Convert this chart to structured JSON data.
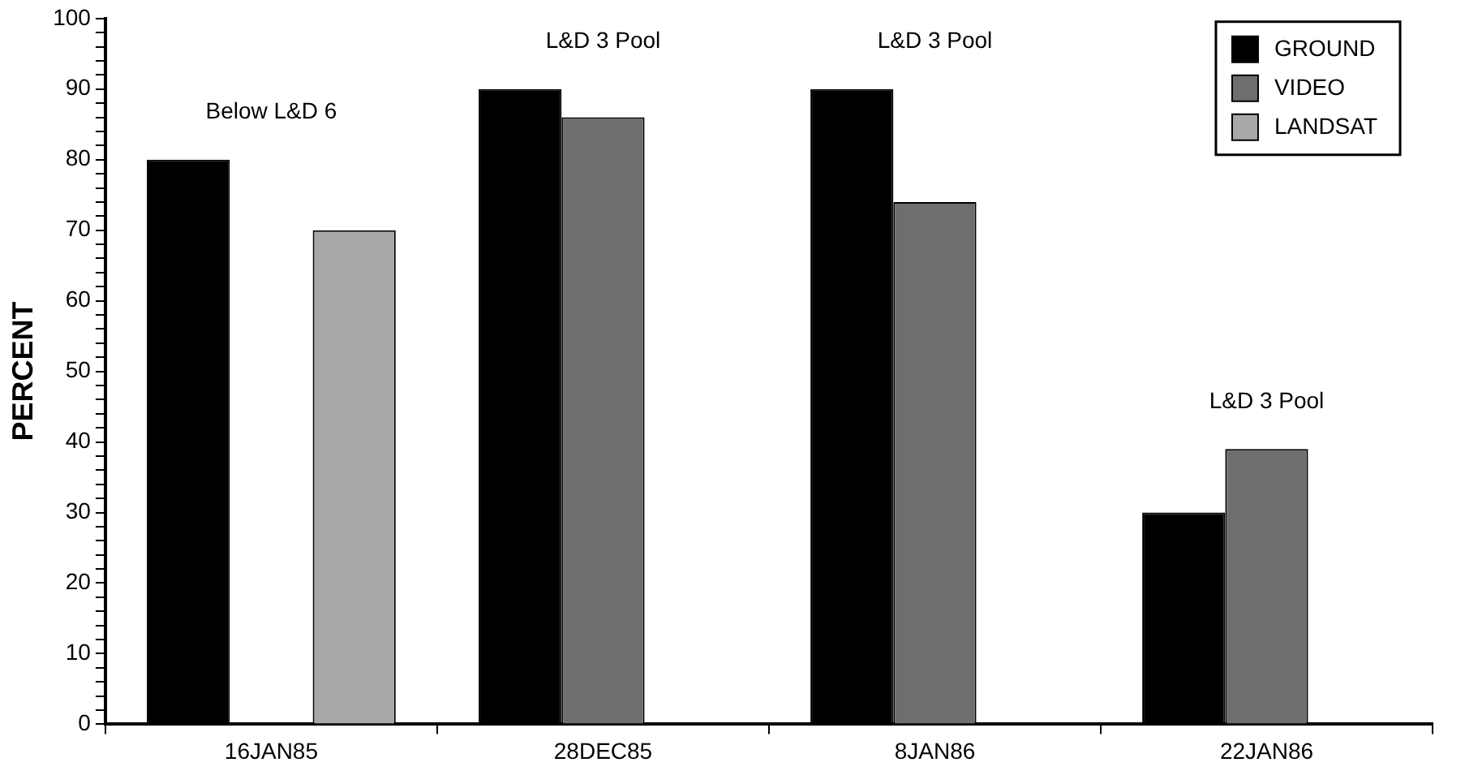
{
  "chart_data": {
    "type": "bar",
    "ylabel": "PERCENT",
    "categories": [
      "16JAN85",
      "28DEC85",
      "8JAN86",
      "22JAN86"
    ],
    "series": [
      {
        "name": "GROUND",
        "color": "#000000",
        "values": [
          80,
          90,
          90,
          30
        ]
      },
      {
        "name": "VIDEO",
        "color": "#6e6e6e",
        "values": [
          null,
          86,
          74,
          39
        ]
      },
      {
        "name": "LANDSAT",
        "color": "#a8a8a8",
        "values": [
          70,
          null,
          null,
          null
        ]
      }
    ],
    "ylim": [
      0,
      100
    ],
    "yticks": [
      0,
      {
        "value": 2,
        "label": null
      },
      {
        "value": 4,
        "label": null
      },
      {
        "value": 6,
        "label": null
      },
      {
        "value": 8,
        "label": null
      },
      10,
      {
        "value": 12,
        "label": null
      },
      {
        "value": 14,
        "label": null
      },
      {
        "value": 16,
        "label": null
      },
      {
        "value": 18,
        "label": null
      },
      20,
      {
        "value": 22,
        "label": null
      },
      {
        "value": 24,
        "label": null
      },
      {
        "value": 26,
        "label": null
      },
      {
        "value": 28,
        "label": null
      },
      30,
      {
        "value": 32,
        "label": null
      },
      {
        "value": 34,
        "label": null
      },
      {
        "value": 36,
        "label": null
      },
      {
        "value": 38,
        "label": null
      },
      40,
      {
        "value": 42,
        "label": null
      },
      {
        "value": 44,
        "label": null
      },
      {
        "value": 46,
        "label": null
      },
      {
        "value": 48,
        "label": null
      },
      50,
      {
        "value": 52,
        "label": null
      },
      {
        "value": 54,
        "label": null
      },
      {
        "value": 56,
        "label": null
      },
      {
        "value": 58,
        "label": null
      },
      60,
      {
        "value": 62,
        "label": null
      },
      {
        "value": 64,
        "label": null
      },
      {
        "value": 66,
        "label": null
      },
      {
        "value": 68,
        "label": null
      },
      70,
      {
        "value": 72,
        "label": null
      },
      {
        "value": 74,
        "label": null
      },
      {
        "value": 76,
        "label": null
      },
      {
        "value": 78,
        "label": null
      },
      80,
      {
        "value": 82,
        "label": null
      },
      {
        "value": 84,
        "label": null
      },
      {
        "value": 86,
        "label": null
      },
      {
        "value": 88,
        "label": null
      },
      90,
      {
        "value": 92,
        "label": null
      },
      {
        "value": 94,
        "label": null
      },
      {
        "value": 96,
        "label": null
      },
      {
        "value": 98,
        "label": null
      },
      100
    ],
    "grid": false,
    "legend": "top right",
    "annotations": [
      "Below L&D 6",
      "L&D 3 Pool",
      "L&D 3 Pool",
      "L&D 3 Pool"
    ]
  }
}
